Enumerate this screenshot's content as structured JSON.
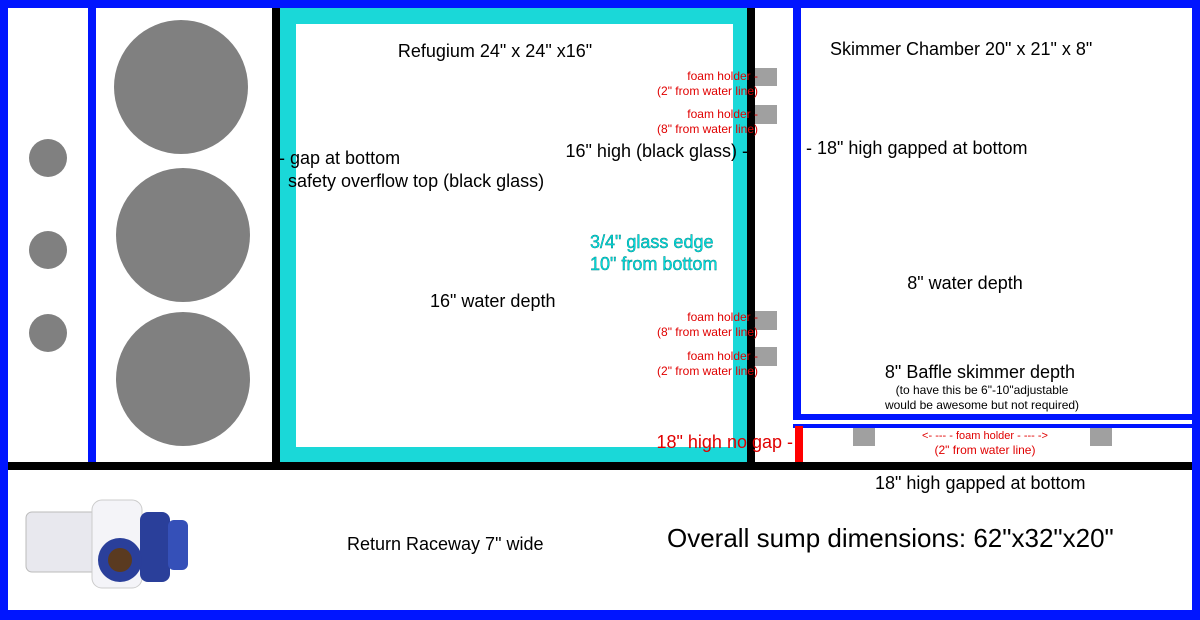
{
  "refugium": {
    "title": "Refugium 24\" x 24\" x16\"",
    "wall_label": "16\" high (black glass) -",
    "overflow_gap": "- gap at bottom",
    "overflow_top": "safety overflow top (black glass)",
    "glass_edge": "3/4\" glass edge",
    "glass_edge_height": "10\" from bottom",
    "water_depth": "16\" water depth",
    "foam_holders": [
      {
        "label": "foam holder -",
        "note": "(2\" from water line)"
      },
      {
        "label": "foam holder -",
        "note": "(8\" from water line)"
      },
      {
        "label": "foam holder -",
        "note": "(8\" from water line)"
      },
      {
        "label": "foam holder -",
        "note": "(2\" from water line)"
      }
    ]
  },
  "skimmer": {
    "title": "Skimmer Chamber 20\" x 21\" x 8\"",
    "wall_label": "- 18\" high gapped at bottom",
    "water_depth": "8\" water depth",
    "baffle": "8\" Baffle skimmer depth",
    "baffle_note_1": "(to have this be 6\"-10\"adjustable",
    "baffle_note_2": "would be awesome but not required)"
  },
  "no_gap_label": "18\" high no gap -",
  "bottom_foam_holder": {
    "label": "<- --- - foam holder - --- ->",
    "note": "(2\" from water line)"
  },
  "return": {
    "wall_label": "18\" high gapped at bottom",
    "title": "Return Raceway 7\" wide"
  },
  "overall": "Overall sump dimensions: 62\"x32\"x20\""
}
